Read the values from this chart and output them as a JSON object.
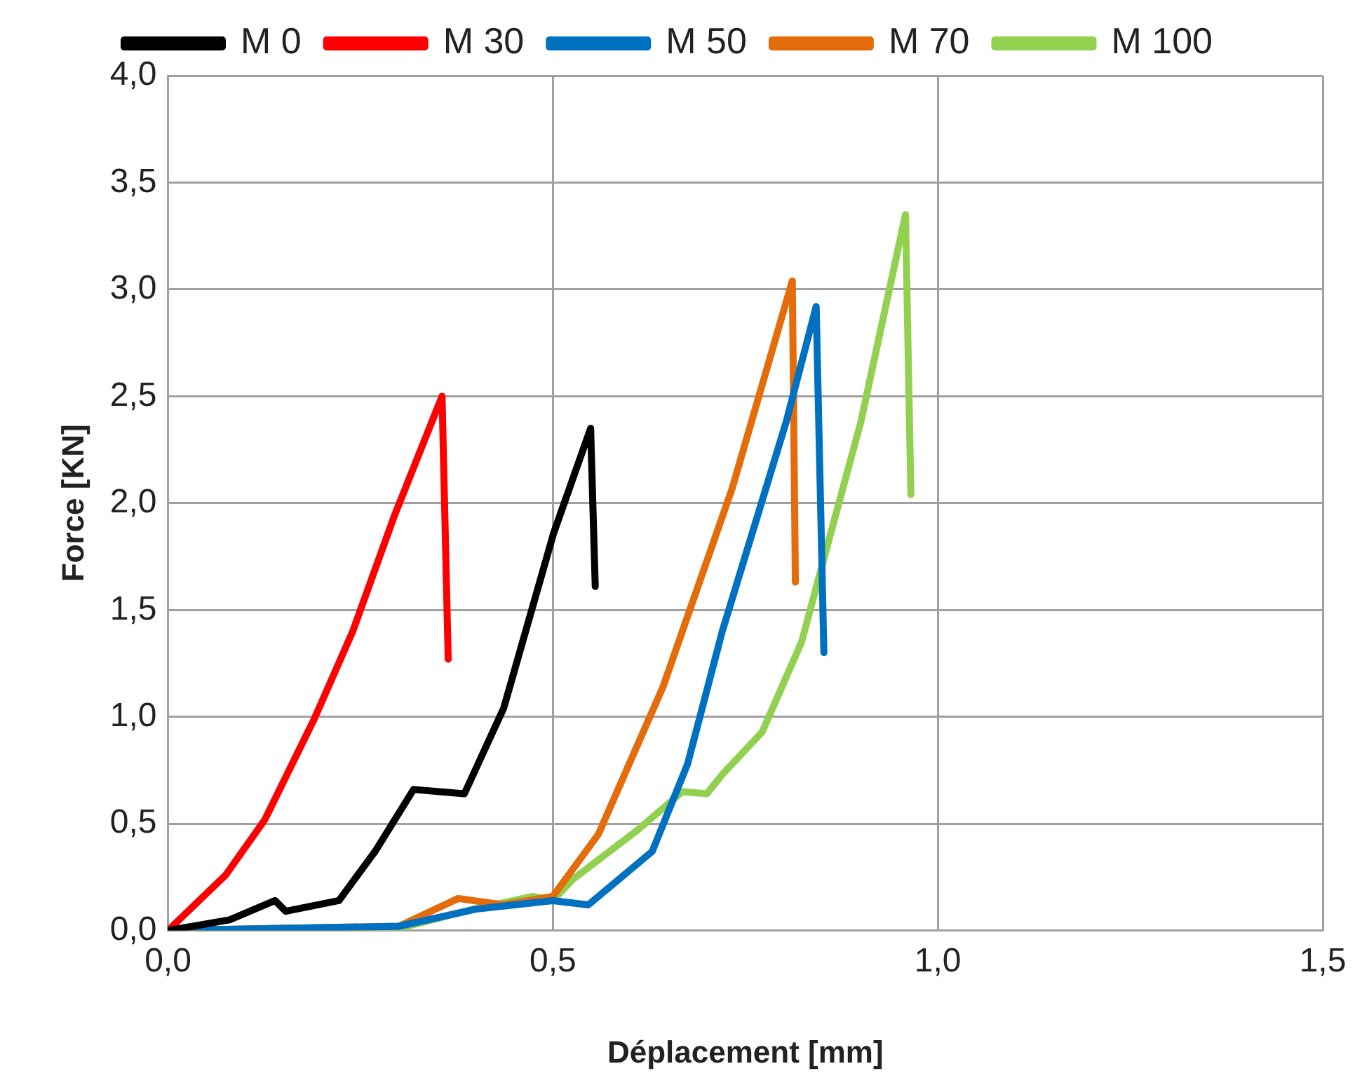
{
  "chart_data": {
    "type": "line",
    "xlabel": "Déplacement [mm]",
    "ylabel": "Force [KN]",
    "legend": "top",
    "grid": true,
    "marker": "none",
    "line_style": "solid",
    "xlim": [
      0,
      1.5
    ],
    "ylim": [
      0,
      4
    ],
    "xticks": [
      {
        "value": 0,
        "label": "0,0"
      },
      {
        "value": 0.5,
        "label": "0,5"
      },
      {
        "value": 1,
        "label": "1,0"
      },
      {
        "value": 1.5,
        "label": "1,5"
      }
    ],
    "yticks": [
      {
        "value": 0,
        "label": "0,0"
      },
      {
        "value": 0.5,
        "label": "0,5"
      },
      {
        "value": 1,
        "label": "1,0"
      },
      {
        "value": 1.5,
        "label": "1,5"
      },
      {
        "value": 2,
        "label": "2,0"
      },
      {
        "value": 2.5,
        "label": "2,5"
      },
      {
        "value": 3,
        "label": "3,0"
      },
      {
        "value": 3.5,
        "label": "3,5"
      },
      {
        "value": 4,
        "label": "4,0"
      }
    ],
    "series": [
      {
        "name": "M 0",
        "color": "#000000",
        "x": [
          0,
          0.08,
          0.139,
          0.153,
          0.222,
          0.269,
          0.319,
          0.385,
          0.436,
          0.501,
          0.549,
          0.555
        ],
        "values": [
          0,
          0.05,
          0.14,
          0.09,
          0.14,
          0.37,
          0.66,
          0.64,
          1.04,
          1.86,
          2.35,
          1.61
        ]
      },
      {
        "name": "M 30",
        "color": "#ff0000",
        "x": [
          0,
          0.075,
          0.126,
          0.19,
          0.24,
          0.294,
          0.356,
          0.364
        ],
        "values": [
          0,
          0.26,
          0.52,
          0.99,
          1.4,
          1.94,
          2.5,
          1.27
        ]
      },
      {
        "name": "M 50",
        "color": "#0070c0",
        "x": [
          0,
          0.3,
          0.4,
          0.5,
          0.546,
          0.629,
          0.675,
          0.72,
          0.759,
          0.803,
          0.842,
          0.852
        ],
        "values": [
          0,
          0.02,
          0.1,
          0.14,
          0.12,
          0.37,
          0.78,
          1.4,
          1.86,
          2.38,
          2.92,
          1.3
        ]
      },
      {
        "name": "M 70",
        "color": "#e46c0a",
        "x": [
          0,
          0.3,
          0.377,
          0.436,
          0.5,
          0.559,
          0.643,
          0.733,
          0.811,
          0.815
        ],
        "values": [
          0,
          0.02,
          0.15,
          0.12,
          0.16,
          0.45,
          1.14,
          2.07,
          3.04,
          1.63
        ]
      },
      {
        "name": "M 100",
        "color": "#92d050",
        "x": [
          0,
          0.3,
          0.397,
          0.474,
          0.5,
          0.526,
          0.61,
          0.668,
          0.7,
          0.72,
          0.772,
          0.823,
          0.861,
          0.9,
          0.958,
          0.965
        ],
        "values": [
          0,
          0.01,
          0.1,
          0.16,
          0.14,
          0.24,
          0.47,
          0.65,
          0.64,
          0.73,
          0.93,
          1.35,
          1.86,
          2.38,
          3.35,
          2.04
        ]
      }
    ]
  }
}
